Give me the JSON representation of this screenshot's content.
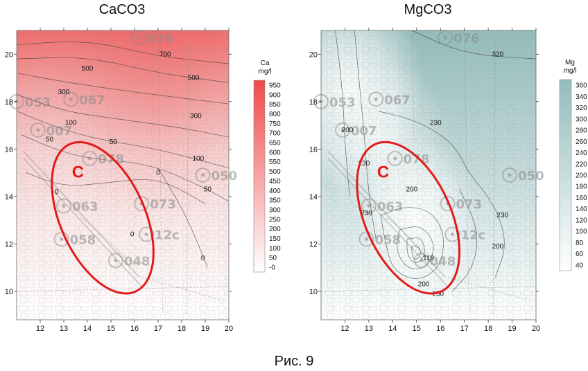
{
  "figure": {
    "caption": "Рис. 9"
  },
  "chart_data": [
    {
      "type": "heatmap",
      "title": "CaCO3",
      "xlabel": "",
      "ylabel": "",
      "xlim": [
        11,
        20
      ],
      "ylim": [
        8.8,
        21
      ],
      "xticks": [
        12,
        13,
        14,
        15,
        16,
        17,
        18,
        19,
        20
      ],
      "yticks": [
        10,
        12,
        14,
        16,
        18,
        20
      ],
      "colorbar": {
        "unit_line1": "Ca",
        "unit_line2": "mg/l",
        "min": -25,
        "max": 975,
        "ticks": [
          950,
          900,
          850,
          800,
          750,
          700,
          650,
          600,
          550,
          500,
          450,
          400,
          350,
          300,
          250,
          200,
          150,
          100,
          50,
          0
        ],
        "tick_labels": [
          "950",
          "900",
          "850",
          "800",
          "750",
          "700",
          "650",
          "600",
          "550",
          "500",
          "450",
          "400",
          "350",
          "300",
          "250",
          "200",
          "150",
          "100",
          "50",
          "-0"
        ],
        "color_low": "#ffffff",
        "color_high": "#f04a4a"
      },
      "contour_labels": [
        {
          "value": "700",
          "x": 17.3,
          "y": 20.0
        },
        {
          "value": "500",
          "x": 14.0,
          "y": 19.4
        },
        {
          "value": "500",
          "x": 18.5,
          "y": 19.0
        },
        {
          "value": "300",
          "x": 13.0,
          "y": 18.4
        },
        {
          "value": "300",
          "x": 18.6,
          "y": 17.4
        },
        {
          "value": "100",
          "x": 13.3,
          "y": 17.1
        },
        {
          "value": "50",
          "x": 12.4,
          "y": 16.4
        },
        {
          "value": "50",
          "x": 15.1,
          "y": 16.3
        },
        {
          "value": "100",
          "x": 18.7,
          "y": 15.6
        },
        {
          "value": "0",
          "x": 17.0,
          "y": 15.0
        },
        {
          "value": "50",
          "x": 19.1,
          "y": 14.3
        },
        {
          "value": "0",
          "x": 12.7,
          "y": 14.2
        },
        {
          "value": "0",
          "x": 15.9,
          "y": 12.4
        },
        {
          "value": "0",
          "x": 18.9,
          "y": 11.4
        }
      ],
      "wells": [
        "076",
        "053",
        "007",
        "067",
        "078",
        "063",
        "058",
        "048",
        "073",
        "12с",
        "050"
      ],
      "zone": {
        "label": "C",
        "color": "#e31a1a"
      }
    },
    {
      "type": "heatmap",
      "title": "MgCO3",
      "xlabel": "",
      "ylabel": "",
      "xlim": [
        11,
        20
      ],
      "ylim": [
        8.8,
        21
      ],
      "xticks": [
        12,
        13,
        14,
        15,
        16,
        17,
        18,
        19,
        20
      ],
      "yticks": [
        10,
        12,
        14,
        16,
        18,
        20
      ],
      "colorbar": {
        "unit_line1": "Mg",
        "unit_line2": "mg/l",
        "min": 30,
        "max": 370,
        "ticks": [
          360,
          340,
          320,
          300,
          280,
          260,
          240,
          220,
          200,
          180,
          160,
          140,
          120,
          100,
          80,
          60,
          40
        ],
        "tick_labels": [
          "360",
          "340",
          "320",
          "300",
          "280",
          "260",
          "240",
          "220",
          "200",
          "180",
          "160",
          "140",
          "120",
          "100",
          "80",
          "60",
          "40"
        ],
        "color_low": "#ffffff",
        "color_high": "#93bcbc"
      },
      "contour_labels": [
        {
          "value": "320",
          "x": 18.4,
          "y": 20.0
        },
        {
          "value": "230",
          "x": 15.8,
          "y": 17.1
        },
        {
          "value": "200",
          "x": 12.1,
          "y": 16.8
        },
        {
          "value": "230",
          "x": 12.8,
          "y": 15.4
        },
        {
          "value": "200",
          "x": 14.8,
          "y": 14.3
        },
        {
          "value": "230",
          "x": 12.9,
          "y": 13.3
        },
        {
          "value": "230",
          "x": 18.6,
          "y": 13.2
        },
        {
          "value": "200",
          "x": 18.4,
          "y": 11.9
        },
        {
          "value": "110",
          "x": 15.5,
          "y": 11.4
        },
        {
          "value": "200",
          "x": 15.3,
          "y": 10.3
        },
        {
          "value": "230",
          "x": 15.9,
          "y": 9.9
        }
      ],
      "wells": [
        "076",
        "053",
        "007",
        "067",
        "078",
        "063",
        "058",
        "048",
        "073",
        "12с",
        "050"
      ],
      "zone": {
        "label": "C",
        "color": "#e31a1a"
      }
    }
  ]
}
